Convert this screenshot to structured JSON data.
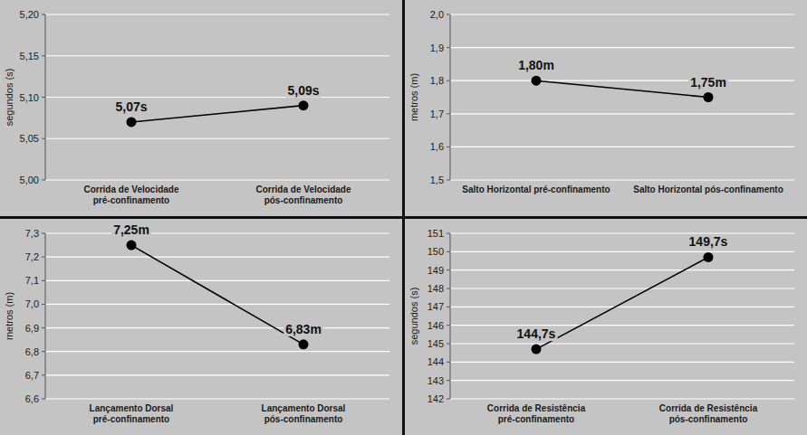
{
  "chart_data": [
    {
      "type": "line",
      "ylabel": "segundos (s)",
      "categories": [
        "Corrida de Velocidade pré-confinamento",
        "Corrida de Velocidade pós-confinamento"
      ],
      "values": [
        5.07,
        5.09
      ],
      "value_labels": [
        "5,07s",
        "5,09s"
      ],
      "ylim": [
        5.0,
        5.2
      ],
      "yticks": [
        {
          "value": 5.0,
          "label": "5,00"
        },
        {
          "value": 5.05,
          "label": "5,05"
        },
        {
          "value": 5.1,
          "label": "5,10"
        },
        {
          "value": 5.15,
          "label": "5,15"
        },
        {
          "value": 5.2,
          "label": "5,20"
        }
      ],
      "grid": true,
      "data_labels": true,
      "color": "#000000",
      "marker": "circle",
      "line_style": "solid"
    },
    {
      "type": "line",
      "ylabel": "metros (m)",
      "categories": [
        "Salto Horizontal pré-confinamento",
        "Salto Horizontal pós-confinamento"
      ],
      "values": [
        1.8,
        1.75
      ],
      "value_labels": [
        "1,80m",
        "1,75m"
      ],
      "ylim": [
        1.5,
        2.0
      ],
      "yticks": [
        {
          "value": 1.5,
          "label": "1,5"
        },
        {
          "value": 1.6,
          "label": "1,6"
        },
        {
          "value": 1.7,
          "label": "1,7"
        },
        {
          "value": 1.8,
          "label": "1,8"
        },
        {
          "value": 1.9,
          "label": "1,9"
        },
        {
          "value": 2.0,
          "label": "2,0"
        }
      ],
      "grid": true,
      "data_labels": true,
      "color": "#000000",
      "marker": "circle",
      "line_style": "solid"
    },
    {
      "type": "line",
      "ylabel": "metros (m)",
      "categories": [
        "Lançamento Dorsal pré-confinamento",
        "Lançamento Dorsal pós-confinamento"
      ],
      "values": [
        7.25,
        6.83
      ],
      "value_labels": [
        "7,25m",
        "6,83m"
      ],
      "ylim": [
        6.6,
        7.3
      ],
      "yticks": [
        {
          "value": 6.6,
          "label": "6,6"
        },
        {
          "value": 6.7,
          "label": "6,7"
        },
        {
          "value": 6.8,
          "label": "6,8"
        },
        {
          "value": 6.9,
          "label": "6,9"
        },
        {
          "value": 7.0,
          "label": "7,0"
        },
        {
          "value": 7.1,
          "label": "7,1"
        },
        {
          "value": 7.2,
          "label": "7,2"
        },
        {
          "value": 7.3,
          "label": "7,3"
        }
      ],
      "grid": true,
      "data_labels": true,
      "color": "#000000",
      "marker": "circle",
      "line_style": "solid"
    },
    {
      "type": "line",
      "ylabel": "segundos (s)",
      "categories": [
        "Corrida de Resistência pré-confinamento",
        "Corrida de Resistência pós-confinamento"
      ],
      "values": [
        144.7,
        149.7
      ],
      "value_labels": [
        "144,7s",
        "149,7s"
      ],
      "ylim": [
        142,
        151
      ],
      "yticks": [
        142,
        143,
        144,
        145,
        146,
        147,
        148,
        149,
        150,
        151
      ],
      "grid": true,
      "data_labels": true,
      "color": "#000000",
      "marker": "circle",
      "line_style": "solid"
    }
  ]
}
